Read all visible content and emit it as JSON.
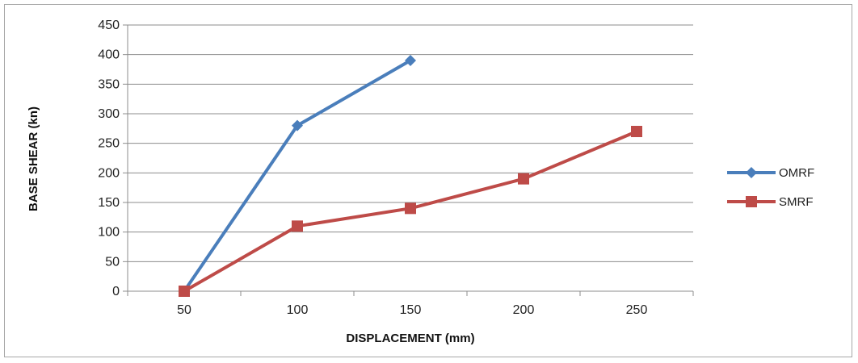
{
  "chart_data": {
    "type": "line",
    "title": "",
    "xlabel": "DISPLACEMENT (mm)",
    "ylabel": "BASE SHEAR (kn)",
    "categories": [
      "50",
      "100",
      "150",
      "200",
      "250"
    ],
    "ylim": [
      0,
      450
    ],
    "yticks": [
      0,
      50,
      100,
      150,
      200,
      250,
      300,
      350,
      400,
      450
    ],
    "grid": "horizontal",
    "legend_position": "right",
    "series": [
      {
        "name": "OMRF",
        "color": "#4a7ebb",
        "marker": "diamond",
        "values": [
          0,
          280,
          390,
          null,
          null
        ]
      },
      {
        "name": "SMRF",
        "color": "#be4b48",
        "marker": "square",
        "values": [
          0,
          110,
          140,
          190,
          270
        ]
      }
    ]
  }
}
